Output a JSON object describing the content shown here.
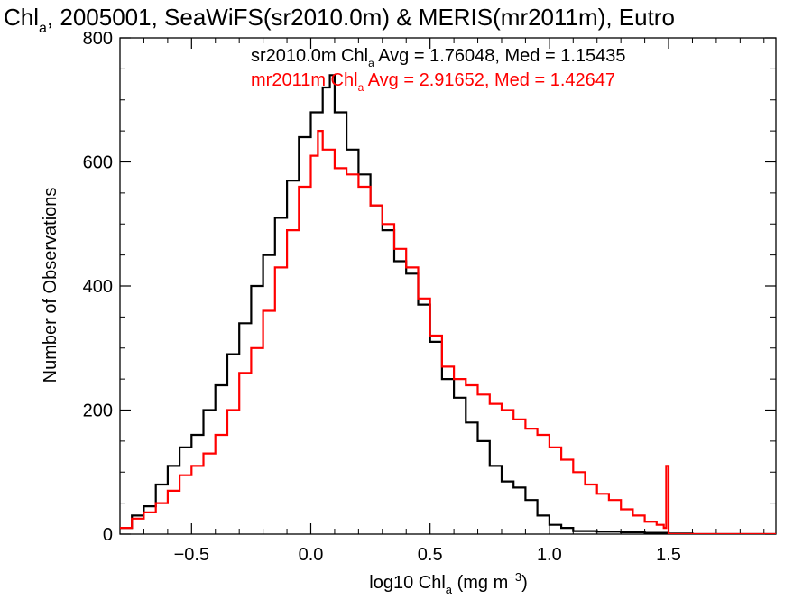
{
  "chart_data": {
    "type": "line",
    "title": {
      "prefix": "Chl",
      "sub": "a",
      "suffix": ", 2005001, SeaWiFS(sr2010.0m) & MERIS(mr2011m), Eutro"
    },
    "xlabel": {
      "prefix": "log10 Chl",
      "sub": "a",
      "middle": " (mg m",
      "sup": "−3",
      "suffix": ")"
    },
    "ylabel": "Number of Observations",
    "xlim": [
      -0.8,
      1.95
    ],
    "ylim": [
      0,
      800
    ],
    "x_ticks": [
      -0.5,
      0.0,
      0.5,
      1.0,
      1.5
    ],
    "x_tick_labels": [
      "−0.5",
      "0.0",
      "0.5",
      "1.0",
      "1.5"
    ],
    "y_ticks": [
      0,
      200,
      400,
      600,
      800
    ],
    "y_tick_labels": [
      "0",
      "200",
      "400",
      "600",
      "800"
    ],
    "grid": false,
    "colors": {
      "series_1": "#000000",
      "series_2": "#ff0000"
    },
    "annotations": [
      {
        "color": "#000000",
        "prefix": "sr2010.0m Chl",
        "sub": "a",
        "suffix": " Avg = 1.76048, Med = 1.15435"
      },
      {
        "color": "#ff0000",
        "prefix": "mr2011m Chl",
        "sub": "a",
        "suffix": " Avg = 2.91652, Med = 1.42647"
      }
    ],
    "series": [
      {
        "color": "#000000",
        "points": [
          [
            -0.8,
            10
          ],
          [
            -0.75,
            30
          ],
          [
            -0.7,
            45
          ],
          [
            -0.65,
            80
          ],
          [
            -0.6,
            110
          ],
          [
            -0.55,
            140
          ],
          [
            -0.5,
            160
          ],
          [
            -0.45,
            200
          ],
          [
            -0.4,
            240
          ],
          [
            -0.35,
            290
          ],
          [
            -0.3,
            340
          ],
          [
            -0.25,
            400
          ],
          [
            -0.2,
            450
          ],
          [
            -0.15,
            510
          ],
          [
            -0.1,
            570
          ],
          [
            -0.05,
            640
          ],
          [
            0.0,
            680
          ],
          [
            0.05,
            720
          ],
          [
            0.08,
            740
          ],
          [
            0.1,
            680
          ],
          [
            0.15,
            620
          ],
          [
            0.2,
            580
          ],
          [
            0.25,
            530
          ],
          [
            0.3,
            490
          ],
          [
            0.35,
            440
          ],
          [
            0.4,
            420
          ],
          [
            0.45,
            370
          ],
          [
            0.5,
            310
          ],
          [
            0.55,
            250
          ],
          [
            0.6,
            220
          ],
          [
            0.65,
            180
          ],
          [
            0.7,
            150
          ],
          [
            0.75,
            110
          ],
          [
            0.8,
            85
          ],
          [
            0.85,
            75
          ],
          [
            0.9,
            55
          ],
          [
            0.95,
            30
          ],
          [
            1.0,
            15
          ],
          [
            1.05,
            10
          ],
          [
            1.1,
            5
          ],
          [
            1.2,
            4
          ],
          [
            1.3,
            3
          ],
          [
            1.4,
            2
          ],
          [
            1.5,
            1
          ],
          [
            1.6,
            0
          ],
          [
            1.95,
            0
          ]
        ]
      },
      {
        "color": "#ff0000",
        "points": [
          [
            -0.8,
            10
          ],
          [
            -0.75,
            25
          ],
          [
            -0.7,
            35
          ],
          [
            -0.65,
            50
          ],
          [
            -0.6,
            70
          ],
          [
            -0.55,
            95
          ],
          [
            -0.5,
            110
          ],
          [
            -0.45,
            130
          ],
          [
            -0.4,
            160
          ],
          [
            -0.35,
            200
          ],
          [
            -0.3,
            260
          ],
          [
            -0.25,
            300
          ],
          [
            -0.2,
            360
          ],
          [
            -0.15,
            430
          ],
          [
            -0.1,
            490
          ],
          [
            -0.05,
            560
          ],
          [
            0.0,
            610
          ],
          [
            0.03,
            650
          ],
          [
            0.05,
            620
          ],
          [
            0.1,
            590
          ],
          [
            0.15,
            580
          ],
          [
            0.2,
            560
          ],
          [
            0.25,
            530
          ],
          [
            0.3,
            500
          ],
          [
            0.35,
            460
          ],
          [
            0.4,
            430
          ],
          [
            0.45,
            380
          ],
          [
            0.5,
            320
          ],
          [
            0.55,
            270
          ],
          [
            0.6,
            250
          ],
          [
            0.65,
            240
          ],
          [
            0.7,
            225
          ],
          [
            0.75,
            210
          ],
          [
            0.8,
            200
          ],
          [
            0.85,
            185
          ],
          [
            0.9,
            170
          ],
          [
            0.95,
            160
          ],
          [
            1.0,
            140
          ],
          [
            1.05,
            120
          ],
          [
            1.1,
            100
          ],
          [
            1.15,
            80
          ],
          [
            1.2,
            65
          ],
          [
            1.25,
            55
          ],
          [
            1.3,
            40
          ],
          [
            1.35,
            30
          ],
          [
            1.4,
            20
          ],
          [
            1.45,
            15
          ],
          [
            1.48,
            10
          ],
          [
            1.49,
            110
          ],
          [
            1.5,
            0
          ],
          [
            1.95,
            0
          ]
        ]
      }
    ]
  }
}
